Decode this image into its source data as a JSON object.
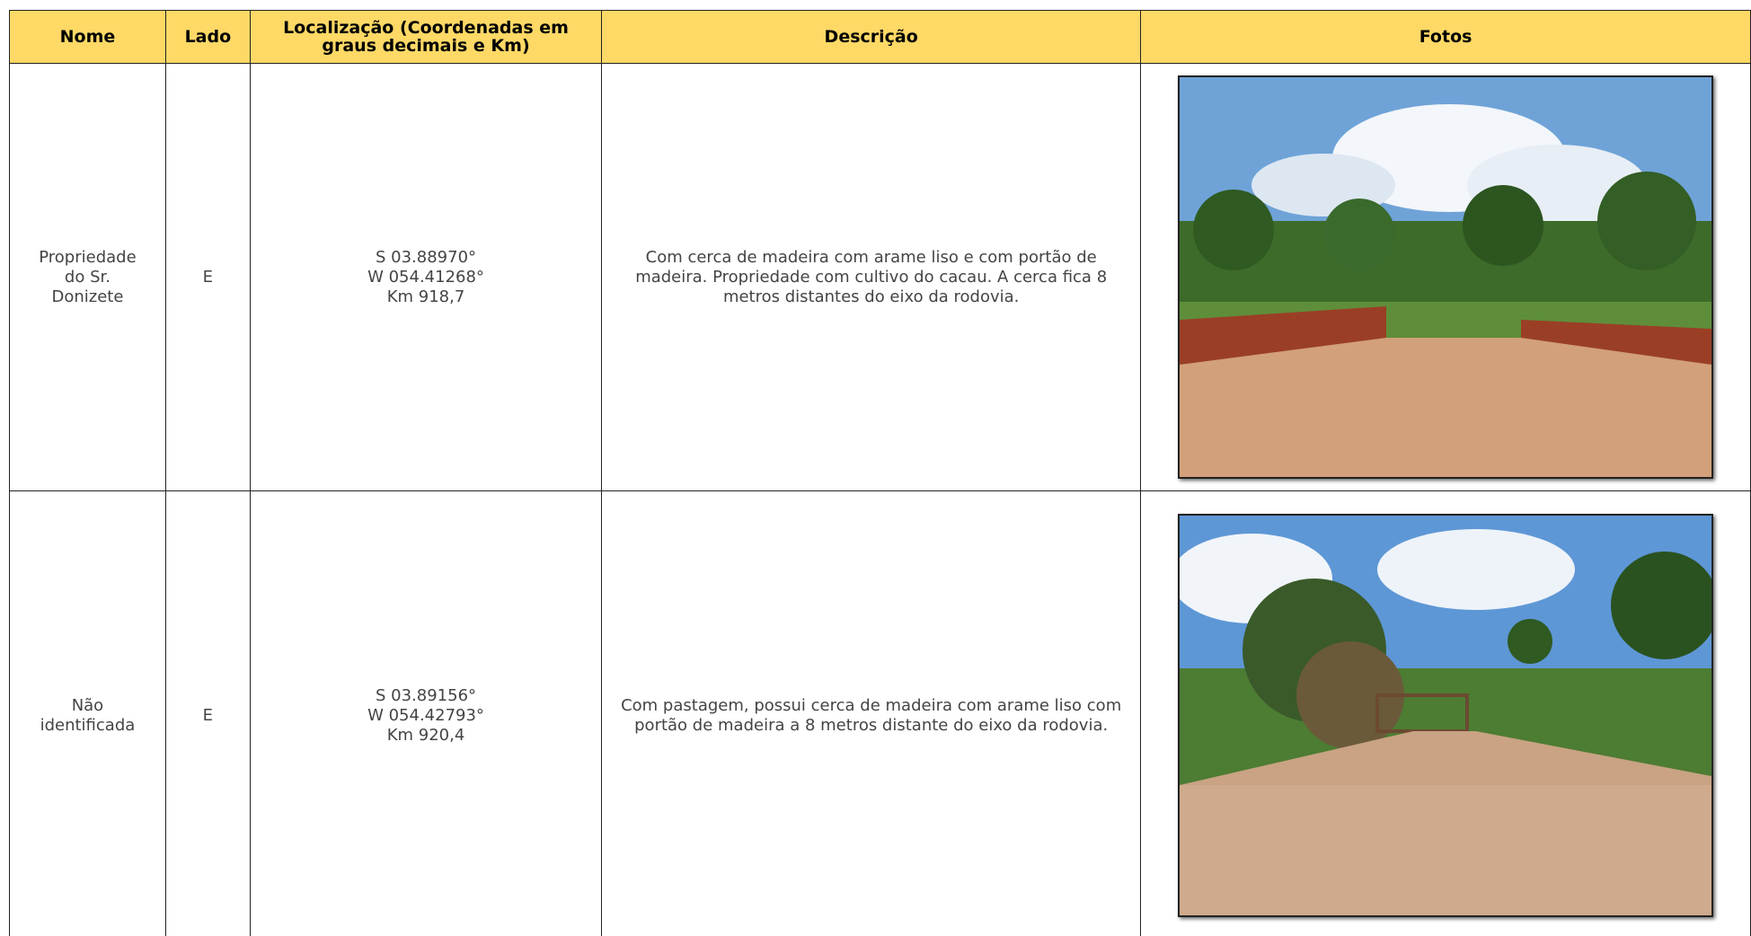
{
  "table": {
    "headers": [
      "Nome",
      "Lado",
      "Localização (Coordenadas em graus decimais e Km)",
      "Descrição",
      "Fotos"
    ],
    "rows": [
      {
        "nome": "Propriedade do Sr. Donizete",
        "lado": "E",
        "localizacao": [
          "S 03.88970°",
          "W 054.41268°",
          "Km 918,7"
        ],
        "descricao": "Com cerca de madeira com arame liso e com portão de madeira. Propriedade com cultivo do cacau. A cerca fica 8 metros distantes do eixo da rodovia."
      },
      {
        "nome": "Não identificada",
        "lado": "E",
        "localizacao": [
          "S 03.89156°",
          "W 054.42793°",
          "Km 920,4"
        ],
        "descricao": "Com pastagem, possui cerca de madeira com arame liso com portão de madeira a 8 metros distante do eixo da rodovia."
      }
    ]
  }
}
